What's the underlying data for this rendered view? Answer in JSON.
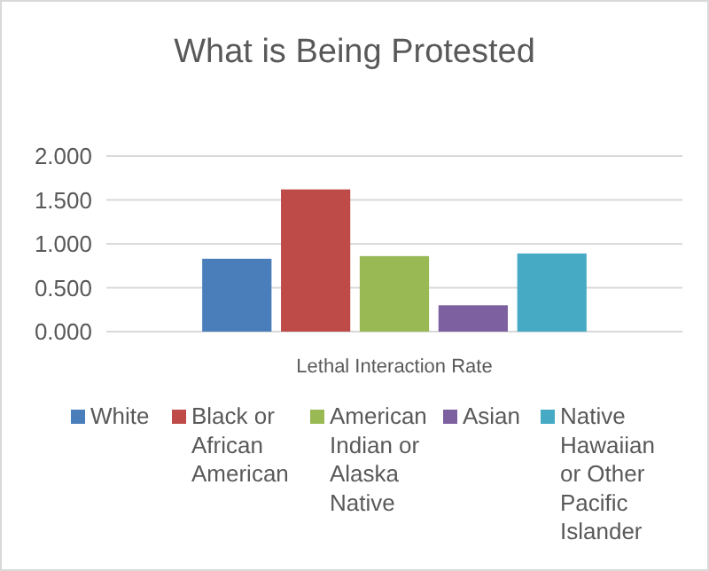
{
  "chart_data": {
    "type": "bar",
    "title": "What is Being Protested",
    "categories": [
      "Lethal Interaction Rate"
    ],
    "series": [
      {
        "name": "White",
        "color": "#4a7ebb",
        "values": [
          0.83
        ]
      },
      {
        "name": "Black or African American",
        "color": "#be4b48",
        "values": [
          1.62
        ]
      },
      {
        "name": "American Indian or Alaska Native",
        "color": "#98b954",
        "values": [
          0.86
        ]
      },
      {
        "name": "Asian",
        "color": "#7d60a0",
        "values": [
          0.3
        ]
      },
      {
        "name": "Native Hawaiian or Other Pacific Islander",
        "color": "#46aac5",
        "values": [
          0.89
        ]
      }
    ],
    "ylim": [
      0,
      2
    ],
    "yticks": [
      {
        "value": 0,
        "label": "0.000"
      },
      {
        "value": 0.5,
        "label": "0.500"
      },
      {
        "value": 1,
        "label": "1.000"
      },
      {
        "value": 1.5,
        "label": "1.500"
      },
      {
        "value": 2,
        "label": "2.000"
      }
    ],
    "grid": "y",
    "legend": "bottom"
  }
}
